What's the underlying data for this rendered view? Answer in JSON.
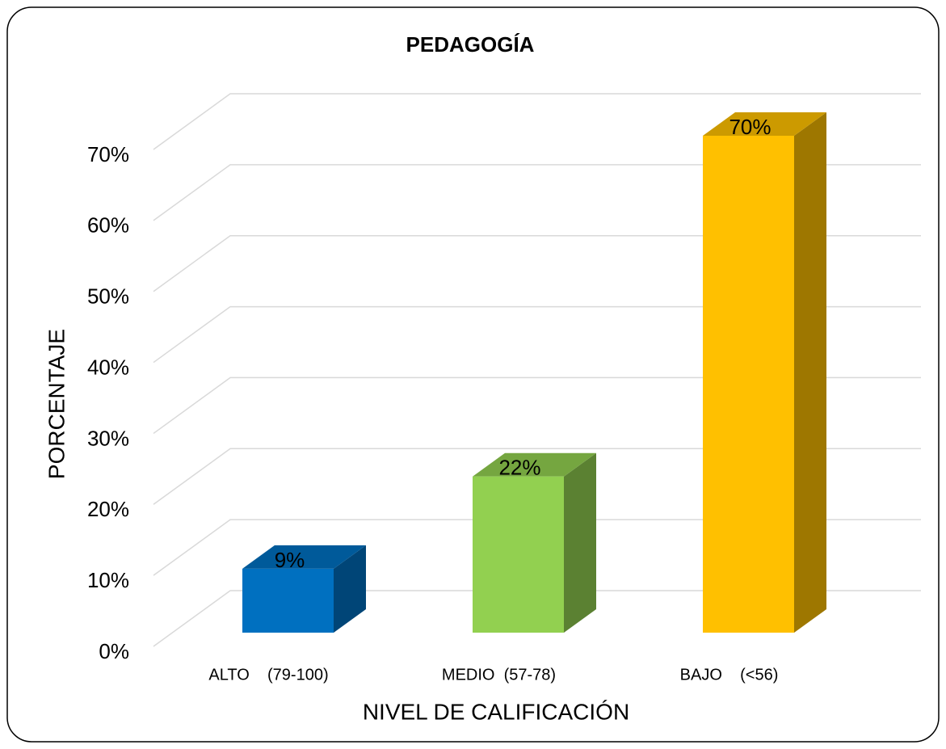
{
  "chart_data": {
    "type": "bar3d",
    "title": "PEDAGOGÍA",
    "y_label": "PORCENTAJE",
    "x_label": "NIVEL DE CALIFICACIÓN",
    "categories": [
      "ALTO    (79-100)",
      "MEDIO  (57-78)",
      "BAJO    (<56)"
    ],
    "values": [
      9,
      22,
      70
    ],
    "value_labels": [
      "9%",
      "22%",
      "70%"
    ],
    "colors": [
      "#0070c0",
      "#92d050",
      "#ffc000"
    ],
    "ylim": [
      0,
      70
    ],
    "yticks": [
      {
        "value": 0,
        "label": "0%"
      },
      {
        "value": 10,
        "label": "10%"
      },
      {
        "value": 20,
        "label": "20%"
      },
      {
        "value": 30,
        "label": "30%"
      },
      {
        "value": 40,
        "label": "40%"
      },
      {
        "value": 50,
        "label": "50%"
      },
      {
        "value": 60,
        "label": "60%"
      },
      {
        "value": 70,
        "label": "70%"
      }
    ],
    "grid": true
  }
}
